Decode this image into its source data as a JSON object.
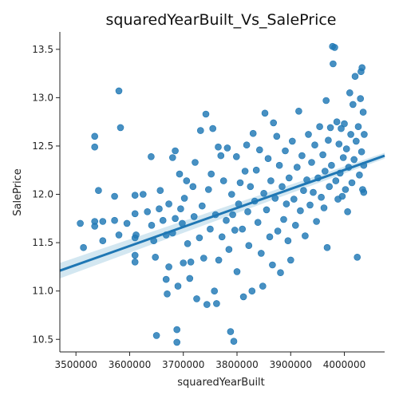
{
  "chart_data": {
    "type": "scatter",
    "title": "squaredYearBuilt_Vs_SalePrice",
    "xlabel": "squaredYearBuilt",
    "ylabel": "SalePrice",
    "xlim": [
      3470000,
      4075000
    ],
    "ylim": [
      10.37,
      13.68
    ],
    "x_ticks": [
      {
        "value": 3500000,
        "label": "3500000"
      },
      {
        "value": 3600000,
        "label": "3600000"
      },
      {
        "value": 3700000,
        "label": "3700000"
      },
      {
        "value": 3800000,
        "label": "3800000"
      },
      {
        "value": 3900000,
        "label": "3900000"
      },
      {
        "value": 4000000,
        "label": "4000000"
      }
    ],
    "y_ticks": [
      {
        "value": 10.5,
        "label": "10.5"
      },
      {
        "value": 11.0,
        "label": "11.0"
      },
      {
        "value": 11.5,
        "label": "11.5"
      },
      {
        "value": 12.0,
        "label": "12.0"
      },
      {
        "value": 12.5,
        "label": "12.5"
      },
      {
        "value": 13.0,
        "label": "13.0"
      },
      {
        "value": 13.5,
        "label": "13.5"
      }
    ],
    "series": [
      {
        "name": "observations",
        "color": "#1f77b4",
        "points": [
          [
            3508000,
            11.7
          ],
          [
            3514000,
            11.45
          ],
          [
            3535000,
            12.6
          ],
          [
            3535000,
            12.49
          ],
          [
            3535000,
            11.72
          ],
          [
            3535000,
            11.67
          ],
          [
            3542000,
            12.04
          ],
          [
            3550000,
            11.72
          ],
          [
            3550000,
            11.52
          ],
          [
            3572000,
            11.98
          ],
          [
            3572000,
            11.73
          ],
          [
            3580000,
            13.07
          ],
          [
            3583000,
            12.69
          ],
          [
            3580000,
            11.58
          ],
          [
            3595000,
            11.7
          ],
          [
            3610000,
            11.99
          ],
          [
            3610000,
            11.8
          ],
          [
            3610000,
            11.55
          ],
          [
            3610000,
            11.37
          ],
          [
            3610000,
            11.3
          ],
          [
            3612000,
            11.58
          ],
          [
            3625000,
            12.0
          ],
          [
            3633000,
            11.82
          ],
          [
            3640000,
            12.39
          ],
          [
            3641000,
            11.68
          ],
          [
            3645000,
            11.52
          ],
          [
            3648000,
            11.35
          ],
          [
            3650000,
            10.54
          ],
          [
            3655000,
            11.85
          ],
          [
            3657000,
            12.04
          ],
          [
            3662000,
            11.73
          ],
          [
            3668000,
            11.58
          ],
          [
            3668000,
            11.12
          ],
          [
            3670000,
            10.97
          ],
          [
            3673000,
            11.9
          ],
          [
            3673000,
            11.25
          ],
          [
            3680000,
            12.38
          ],
          [
            3680000,
            11.6
          ],
          [
            3685000,
            12.45
          ],
          [
            3685000,
            11.75
          ],
          [
            3688000,
            10.6
          ],
          [
            3688000,
            10.47
          ],
          [
            3690000,
            11.05
          ],
          [
            3693000,
            12.21
          ],
          [
            3695000,
            11.85
          ],
          [
            3698000,
            11.7
          ],
          [
            3700000,
            11.29
          ],
          [
            3702000,
            11.96
          ],
          [
            3706000,
            12.14
          ],
          [
            3708000,
            11.49
          ],
          [
            3712000,
            11.13
          ],
          [
            3714000,
            11.3
          ],
          [
            3718000,
            12.08
          ],
          [
            3720000,
            11.77
          ],
          [
            3722000,
            12.33
          ],
          [
            3725000,
            10.92
          ],
          [
            3730000,
            11.55
          ],
          [
            3732000,
            12.66
          ],
          [
            3735000,
            11.88
          ],
          [
            3738000,
            11.34
          ],
          [
            3742000,
            12.83
          ],
          [
            3744000,
            10.86
          ],
          [
            3747000,
            12.05
          ],
          [
            3750000,
            11.64
          ],
          [
            3752000,
            12.21
          ],
          [
            3755000,
            12.68
          ],
          [
            3758000,
            11.0
          ],
          [
            3760000,
            11.79
          ],
          [
            3762000,
            10.87
          ],
          [
            3765000,
            12.49
          ],
          [
            3766000,
            11.32
          ],
          [
            3770000,
            12.4
          ],
          [
            3772000,
            11.56
          ],
          [
            3775000,
            12.14
          ],
          [
            3780000,
            11.73
          ],
          [
            3782000,
            12.48
          ],
          [
            3785000,
            11.43
          ],
          [
            3788000,
            10.58
          ],
          [
            3790000,
            12.0
          ],
          [
            3792000,
            11.79
          ],
          [
            3794000,
            10.48
          ],
          [
            3796000,
            11.63
          ],
          [
            3799000,
            12.39
          ],
          [
            3800000,
            11.2
          ],
          [
            3803000,
            11.9
          ],
          [
            3806000,
            12.12
          ],
          [
            3810000,
            11.64
          ],
          [
            3812000,
            10.94
          ],
          [
            3815000,
            12.24
          ],
          [
            3818000,
            12.51
          ],
          [
            3820000,
            11.82
          ],
          [
            3822000,
            11.47
          ],
          [
            3825000,
            12.08
          ],
          [
            3828000,
            11.0
          ],
          [
            3830000,
            12.63
          ],
          [
            3833000,
            11.93
          ],
          [
            3836000,
            12.25
          ],
          [
            3839000,
            11.71
          ],
          [
            3842000,
            12.46
          ],
          [
            3845000,
            11.39
          ],
          [
            3848000,
            11.05
          ],
          [
            3850000,
            12.01
          ],
          [
            3852000,
            12.84
          ],
          [
            3855000,
            11.84
          ],
          [
            3858000,
            12.37
          ],
          [
            3861000,
            11.56
          ],
          [
            3863000,
            12.14
          ],
          [
            3866000,
            11.27
          ],
          [
            3868000,
            12.74
          ],
          [
            3871000,
            11.96
          ],
          [
            3874000,
            12.6
          ],
          [
            3876000,
            11.62
          ],
          [
            3879000,
            12.3
          ],
          [
            3881000,
            11.19
          ],
          [
            3884000,
            12.08
          ],
          [
            3887000,
            11.74
          ],
          [
            3890000,
            12.45
          ],
          [
            3892000,
            11.9
          ],
          [
            3895000,
            11.52
          ],
          [
            3897000,
            12.17
          ],
          [
            3900000,
            11.32
          ],
          [
            3903000,
            12.55
          ],
          [
            3906000,
            11.95
          ],
          [
            3909000,
            11.68
          ],
          [
            3912000,
            12.28
          ],
          [
            3915000,
            12.86
          ],
          [
            3918000,
            11.83
          ],
          [
            3921000,
            12.4
          ],
          [
            3924000,
            12.04
          ],
          [
            3927000,
            11.57
          ],
          [
            3930000,
            12.15
          ],
          [
            3933000,
            12.62
          ],
          [
            3936000,
            11.89
          ],
          [
            3939000,
            12.33
          ],
          [
            3942000,
            12.02
          ],
          [
            3945000,
            12.51
          ],
          [
            3948000,
            11.72
          ],
          [
            3951000,
            12.17
          ],
          [
            3954000,
            12.7
          ],
          [
            3957000,
            11.97
          ],
          [
            3960000,
            12.41
          ],
          [
            3962000,
            11.86
          ],
          [
            3964000,
            12.24
          ],
          [
            3966000,
            12.97
          ],
          [
            3968000,
            11.45
          ],
          [
            3970000,
            12.56
          ],
          [
            3972000,
            12.08
          ],
          [
            3974000,
            12.69
          ],
          [
            3976000,
            12.3
          ],
          [
            3978000,
            13.53
          ],
          [
            3979000,
            13.35
          ],
          [
            3982000,
            13.52
          ],
          [
            3984000,
            12.14
          ],
          [
            3986000,
            12.75
          ],
          [
            3988000,
            11.95
          ],
          [
            3990000,
            12.52
          ],
          [
            3992000,
            12.22
          ],
          [
            3994000,
            12.68
          ],
          [
            3996000,
            11.98
          ],
          [
            3998000,
            12.38
          ],
          [
            4000000,
            12.73
          ],
          [
            4002000,
            12.05
          ],
          [
            4004000,
            12.47
          ],
          [
            4006000,
            11.82
          ],
          [
            4008000,
            12.28
          ],
          [
            4010000,
            13.05
          ],
          [
            4012000,
            12.62
          ],
          [
            4014000,
            12.12
          ],
          [
            4016000,
            12.93
          ],
          [
            4018000,
            12.36
          ],
          [
            4020000,
            13.22
          ],
          [
            4022000,
            12.55
          ],
          [
            4024000,
            11.35
          ],
          [
            4026000,
            12.7
          ],
          [
            4028000,
            12.2
          ],
          [
            4030000,
            12.99
          ],
          [
            4031000,
            13.27
          ],
          [
            4032000,
            12.44
          ],
          [
            4033000,
            13.31
          ],
          [
            4034000,
            12.05
          ],
          [
            4035000,
            12.85
          ],
          [
            4036000,
            12.3
          ],
          [
            4036000,
            12.02
          ],
          [
            4037000,
            12.62
          ]
        ]
      }
    ],
    "regression": {
      "x": [
        3470000,
        4075000
      ],
      "y": [
        11.21,
        12.4
      ],
      "ci_lower": [
        11.13,
        12.37
      ],
      "ci_upper": [
        11.29,
        12.43
      ],
      "line_color": "#1f77b4",
      "band_color": "#9ecae1"
    },
    "grid": false
  }
}
